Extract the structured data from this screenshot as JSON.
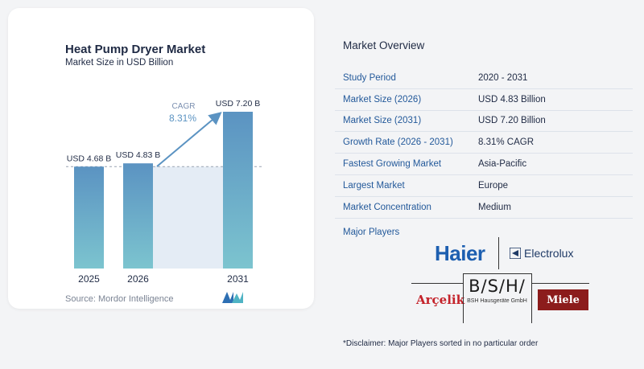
{
  "chart_data": {
    "type": "bar",
    "title": "Heat Pump Dryer Market",
    "subtitle": "Market Size in USD Billion",
    "categories": [
      "2025",
      "2026",
      "2031"
    ],
    "values": [
      4.68,
      4.83,
      7.2
    ],
    "data_labels": [
      "USD 4.68 B",
      "USD 4.83 B",
      "USD 7.20 B"
    ],
    "cagr_label": "CAGR",
    "cagr_value": "8.31%",
    "ylim": [
      0,
      7.2
    ],
    "grid": false,
    "colors": {
      "bar_top": "#5b93c2",
      "bar_bottom": "#7cc4cf",
      "band": "#e4ecf5",
      "arrow": "#5b93c2",
      "cagr_text": "#5b93c2"
    }
  },
  "source": "Source:  Mordor Intelligence",
  "overview": {
    "title": "Market Overview",
    "rows": [
      {
        "label": "Study Period",
        "value": "2020 - 2031"
      },
      {
        "label": "Market Size (2026)",
        "value": "USD 4.83 Billion"
      },
      {
        "label": "Market Size (2031)",
        "value": "USD 7.20 Billion"
      },
      {
        "label": "Growth Rate (2026 - 2031)",
        "value": "8.31% CAGR"
      },
      {
        "label": "Fastest Growing Market",
        "value": "Asia-Pacific"
      },
      {
        "label": "Largest Market",
        "value": "Europe"
      },
      {
        "label": "Market Concentration",
        "value": "Medium"
      }
    ],
    "players_title": "Major Players"
  },
  "players": {
    "haier": "Haier",
    "electrolux": "Electrolux",
    "arcelik": "Arçelik",
    "bsh": "B/S/H/",
    "bsh_sub": "BSH Hausgeräte GmbH",
    "miele": "Miele"
  },
  "disclaimer": "*Disclaimer: Major Players sorted in no particular order"
}
